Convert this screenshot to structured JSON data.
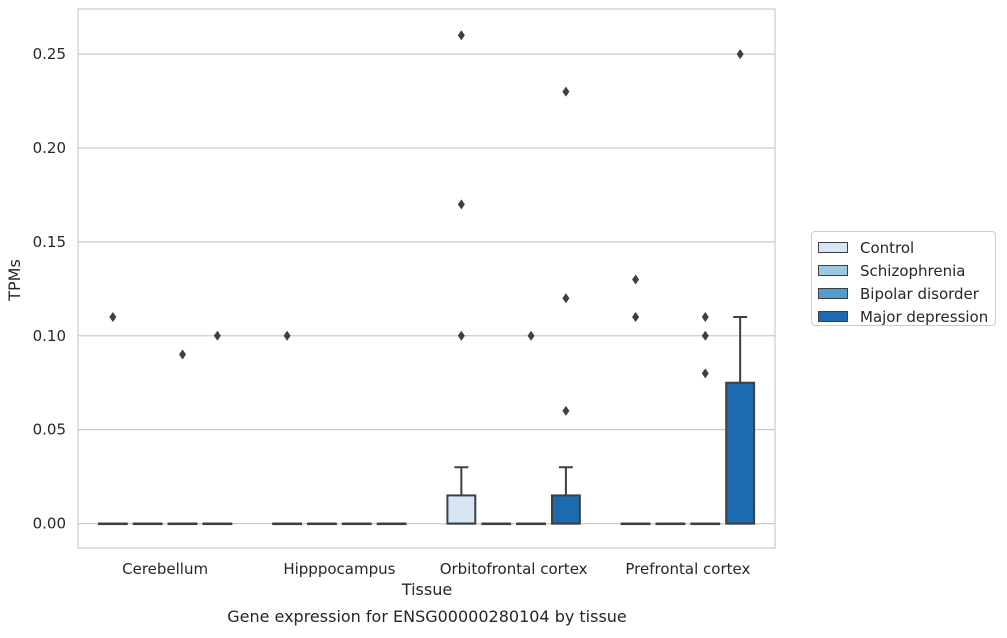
{
  "chart_data": {
    "type": "box",
    "title": "",
    "caption": "Gene expression for ENSG00000280104 by tissue",
    "xlabel": "Tissue",
    "ylabel": "TPMs",
    "ylim": [
      -0.013,
      0.274
    ],
    "yticks": [
      "0.00",
      "0.05",
      "0.10",
      "0.15",
      "0.20",
      "0.25"
    ],
    "grid": "horizontal",
    "legend_position": "right",
    "categories": [
      "Cerebellum",
      "Hipppocampus",
      "Orbitofrontal cortex",
      "Prefrontal cortex"
    ],
    "series": [
      {
        "name": "Control",
        "color": "#d6e6f4",
        "boxes": [
          {
            "q1": 0,
            "median": 0,
            "q3": 0,
            "whisker_low": 0,
            "whisker_high": 0,
            "outliers": [
              0.11
            ]
          },
          {
            "q1": 0,
            "median": 0,
            "q3": 0,
            "whisker_low": 0,
            "whisker_high": 0,
            "outliers": [
              0.1
            ]
          },
          {
            "q1": 0,
            "median": 0,
            "q3": 0.015,
            "whisker_low": 0,
            "whisker_high": 0.03,
            "outliers": [
              0.26,
              0.17,
              0.1
            ]
          },
          {
            "q1": 0,
            "median": 0,
            "q3": 0,
            "whisker_low": 0,
            "whisker_high": 0,
            "outliers": [
              0.13,
              0.11
            ]
          }
        ]
      },
      {
        "name": "Schizophrenia",
        "color": "#9ac8e0",
        "boxes": [
          {
            "q1": 0,
            "median": 0,
            "q3": 0,
            "whisker_low": 0,
            "whisker_high": 0,
            "outliers": []
          },
          {
            "q1": 0,
            "median": 0,
            "q3": 0,
            "whisker_low": 0,
            "whisker_high": 0,
            "outliers": []
          },
          {
            "q1": 0,
            "median": 0,
            "q3": 0,
            "whisker_low": 0,
            "whisker_high": 0,
            "outliers": []
          },
          {
            "q1": 0,
            "median": 0,
            "q3": 0,
            "whisker_low": 0,
            "whisker_high": 0,
            "outliers": []
          }
        ]
      },
      {
        "name": "Bipolar disorder",
        "color": "#529dcc",
        "boxes": [
          {
            "q1": 0,
            "median": 0,
            "q3": 0,
            "whisker_low": 0,
            "whisker_high": 0,
            "outliers": [
              0.09
            ]
          },
          {
            "q1": 0,
            "median": 0,
            "q3": 0,
            "whisker_low": 0,
            "whisker_high": 0,
            "outliers": []
          },
          {
            "q1": 0,
            "median": 0,
            "q3": 0,
            "whisker_low": 0,
            "whisker_high": 0,
            "outliers": [
              0.1
            ]
          },
          {
            "q1": 0,
            "median": 0,
            "q3": 0,
            "whisker_low": 0,
            "whisker_high": 0,
            "outliers": [
              0.11,
              0.1,
              0.08
            ]
          }
        ]
      },
      {
        "name": "Major depression",
        "color": "#1c6aaf",
        "boxes": [
          {
            "q1": 0,
            "median": 0,
            "q3": 0,
            "whisker_low": 0,
            "whisker_high": 0,
            "outliers": [
              0.1
            ]
          },
          {
            "q1": 0,
            "median": 0,
            "q3": 0,
            "whisker_low": 0,
            "whisker_high": 0,
            "outliers": []
          },
          {
            "q1": 0,
            "median": 0,
            "q3": 0.015,
            "whisker_low": 0,
            "whisker_high": 0.03,
            "outliers": [
              0.23,
              0.12,
              0.06
            ]
          },
          {
            "q1": 0,
            "median": 0,
            "q3": 0.075,
            "whisker_low": 0,
            "whisker_high": 0.11,
            "outliers": [
              0.25
            ]
          }
        ]
      }
    ]
  }
}
